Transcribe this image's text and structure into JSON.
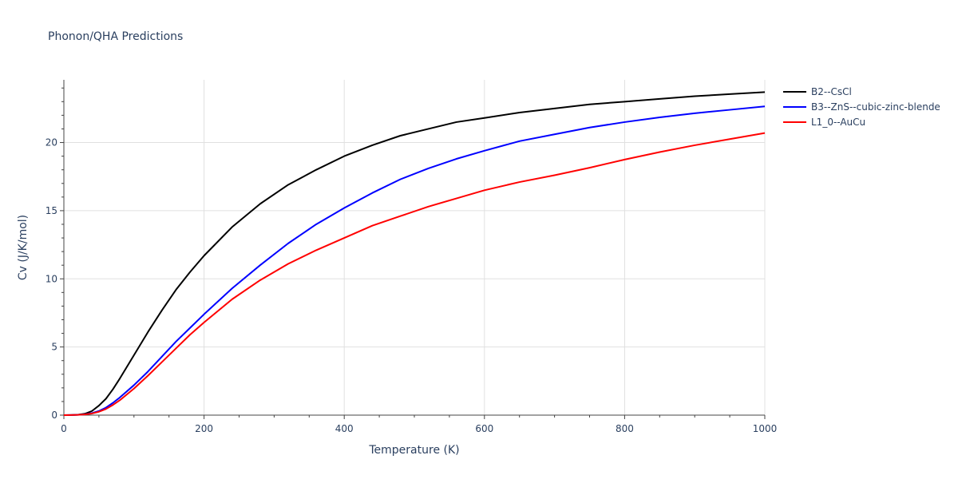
{
  "chart_data": {
    "type": "line",
    "title": "Phonon/QHA Predictions",
    "xlabel": "Temperature (K)",
    "ylabel": "Cv (J/K/mol)",
    "xlim": [
      0,
      1000
    ],
    "ylim": [
      0,
      24.6
    ],
    "xticks": [
      0,
      200,
      400,
      600,
      800,
      1000
    ],
    "yticks": [
      0,
      5,
      10,
      15,
      20
    ],
    "grid": true,
    "legend": "right",
    "series": [
      {
        "name": "B2--CsCl",
        "color": "#000000",
        "x": [
          0,
          10,
          20,
          30,
          40,
          50,
          60,
          70,
          80,
          100,
          120,
          140,
          160,
          180,
          200,
          240,
          280,
          320,
          360,
          400,
          440,
          480,
          520,
          560,
          600,
          650,
          700,
          750,
          800,
          850,
          900,
          950,
          1000
        ],
        "y": [
          0,
          0.01,
          0.03,
          0.1,
          0.3,
          0.7,
          1.2,
          1.9,
          2.7,
          4.4,
          6.1,
          7.7,
          9.2,
          10.5,
          11.7,
          13.8,
          15.5,
          16.9,
          18.0,
          19.0,
          19.8,
          20.5,
          21.0,
          21.5,
          21.8,
          22.2,
          22.5,
          22.8,
          23.0,
          23.2,
          23.4,
          23.55,
          23.7
        ]
      },
      {
        "name": "B3--ZnS--cubic-zinc-blende",
        "color": "#0000ff",
        "x": [
          0,
          10,
          20,
          30,
          40,
          50,
          60,
          70,
          80,
          100,
          120,
          140,
          160,
          180,
          200,
          240,
          280,
          320,
          360,
          400,
          440,
          480,
          520,
          560,
          600,
          650,
          700,
          750,
          800,
          850,
          900,
          950,
          1000
        ],
        "y": [
          0,
          0.005,
          0.02,
          0.06,
          0.15,
          0.3,
          0.55,
          0.9,
          1.3,
          2.2,
          3.2,
          4.3,
          5.4,
          6.4,
          7.4,
          9.3,
          11.0,
          12.6,
          14.0,
          15.2,
          16.3,
          17.3,
          18.1,
          18.8,
          19.4,
          20.1,
          20.6,
          21.1,
          21.5,
          21.85,
          22.15,
          22.4,
          22.65
        ]
      },
      {
        "name": "L1_0--AuCu",
        "color": "#ff0000",
        "x": [
          0,
          10,
          20,
          30,
          40,
          50,
          60,
          70,
          80,
          100,
          120,
          140,
          160,
          180,
          200,
          240,
          280,
          320,
          360,
          400,
          440,
          480,
          520,
          560,
          600,
          650,
          700,
          750,
          800,
          850,
          900,
          950,
          1000
        ],
        "y": [
          0,
          0.005,
          0.02,
          0.05,
          0.12,
          0.25,
          0.45,
          0.75,
          1.1,
          1.95,
          2.9,
          3.9,
          4.9,
          5.9,
          6.8,
          8.5,
          9.9,
          11.1,
          12.1,
          13.0,
          13.9,
          14.6,
          15.3,
          15.9,
          16.5,
          17.1,
          17.6,
          18.15,
          18.75,
          19.3,
          19.8,
          20.25,
          20.7
        ]
      }
    ]
  }
}
